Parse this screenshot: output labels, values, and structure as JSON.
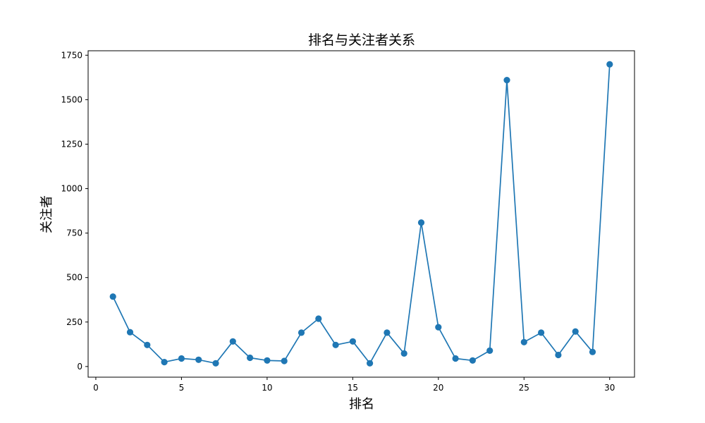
{
  "chart_data": {
    "type": "line",
    "title": "排名与关注者关系",
    "xlabel": "排名",
    "ylabel": "关注者",
    "xlim": [
      -0.45,
      31.45
    ],
    "ylim": [
      -60,
      1775
    ],
    "xticks": [
      0,
      5,
      10,
      15,
      20,
      25,
      30
    ],
    "yticks": [
      0,
      250,
      500,
      750,
      1000,
      1250,
      1500,
      1750
    ],
    "grid": false,
    "marker": "circle",
    "color": "#1f77b4",
    "x": [
      1,
      2,
      3,
      4,
      5,
      6,
      7,
      8,
      9,
      10,
      11,
      12,
      13,
      14,
      15,
      16,
      17,
      18,
      19,
      20,
      21,
      22,
      23,
      24,
      25,
      26,
      27,
      28,
      29,
      30
    ],
    "values": [
      393,
      193,
      121,
      25,
      45,
      38,
      18,
      141,
      49,
      34,
      31,
      190,
      269,
      121,
      141,
      18,
      190,
      73,
      809,
      221,
      45,
      34,
      89,
      1610,
      137,
      190,
      65,
      197,
      82,
      1699
    ]
  }
}
